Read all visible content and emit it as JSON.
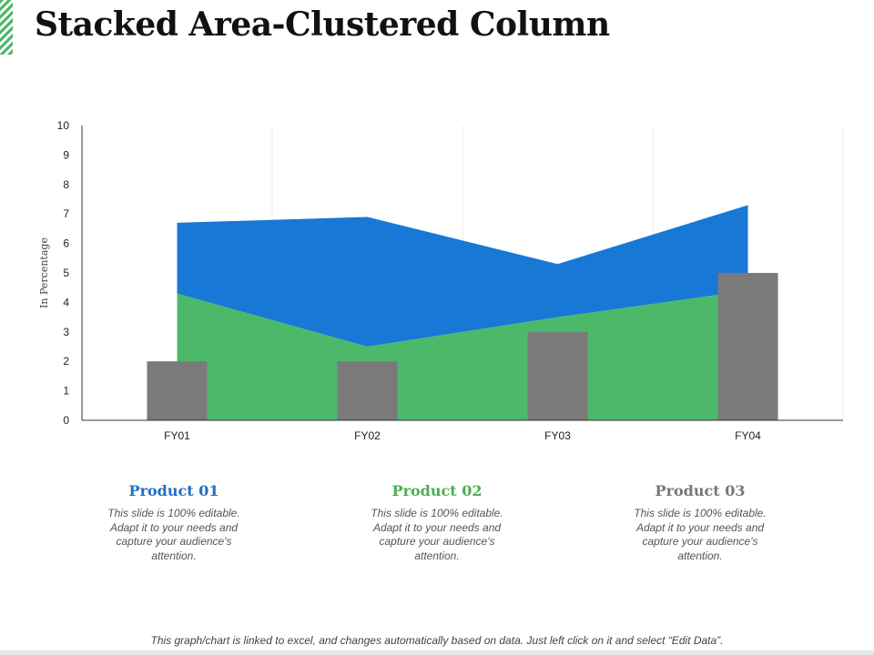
{
  "title": "Stacked Area-Clustered Column",
  "colors": {
    "series1": "#1778d6",
    "series2": "#4cb96a",
    "series3": "#7a7a7a",
    "product1": "#1f6fbf",
    "product2": "#4caf50",
    "product3": "#777777"
  },
  "products": [
    {
      "name": "Product 01",
      "desc": "This slide is 100% editable. Adapt it to your needs and capture your audience's attention."
    },
    {
      "name": "Product 02",
      "desc": "This slide is 100% editable. Adapt it to your needs and capture your audience's attention."
    },
    {
      "name": "Product 03",
      "desc": "This slide is 100% editable. Adapt it to your needs and capture your audience's attention."
    }
  ],
  "footer": "This graph/chart is linked to excel, and changes automatically based on data. Just left click on it and select “Edit Data”.",
  "chart_data": {
    "type": "area",
    "title": "",
    "xlabel": "",
    "ylabel": "In Percentage",
    "ylim": [
      0,
      10
    ],
    "yticks": [
      0,
      1,
      2,
      3,
      4,
      5,
      6,
      7,
      8,
      9,
      10
    ],
    "categories": [
      "FY01",
      "FY02",
      "FY03",
      "FY04"
    ],
    "grid": "vertical",
    "legend": "none",
    "series": [
      {
        "type": "area",
        "stack": "base",
        "values": [
          4.3,
          2.5,
          3.5,
          4.4
        ]
      },
      {
        "type": "area",
        "stack": "top",
        "values": [
          2.4,
          4.4,
          1.8,
          2.9
        ]
      },
      {
        "type": "bar",
        "values": [
          2,
          2,
          3,
          5
        ]
      }
    ]
  }
}
